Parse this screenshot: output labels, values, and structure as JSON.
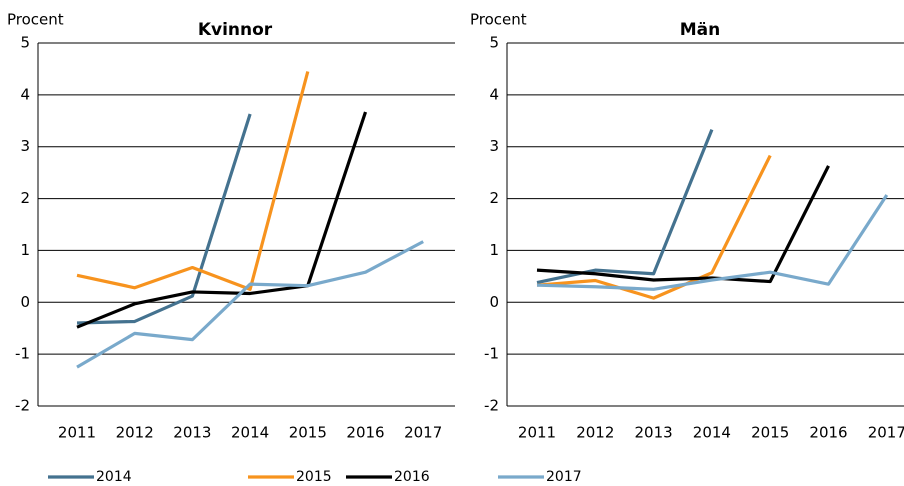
{
  "legend": [
    {
      "name": "2014",
      "color": "#44728f"
    },
    {
      "name": "2015",
      "color": "#f7931e"
    },
    {
      "name": "2016",
      "color": "#000000"
    },
    {
      "name": "2017",
      "color": "#79a9cb"
    }
  ],
  "chart_data": [
    {
      "type": "line",
      "title": "Kvinnor",
      "y_label": "Procent",
      "categories": [
        "2011",
        "2012",
        "2013",
        "2014",
        "2015",
        "2016",
        "2017"
      ],
      "ylim": [
        -2,
        5
      ],
      "yticks": [
        -2,
        -1,
        0,
        1,
        2,
        3,
        4,
        5
      ],
      "grid": true,
      "series": [
        {
          "values": [
            -0.4,
            -0.37,
            0.12,
            3.63,
            null,
            null,
            null
          ]
        },
        {
          "values": [
            0.52,
            0.28,
            0.67,
            0.25,
            4.45,
            null,
            null
          ]
        },
        {
          "values": [
            -0.48,
            -0.03,
            0.2,
            0.17,
            0.32,
            3.67,
            null
          ]
        },
        {
          "values": [
            -1.25,
            -0.6,
            -0.72,
            0.35,
            0.32,
            0.58,
            1.17
          ]
        }
      ]
    },
    {
      "type": "line",
      "title": "Män",
      "y_label": "Procent",
      "categories": [
        "2011",
        "2012",
        "2013",
        "2014",
        "2015",
        "2016",
        "2017"
      ],
      "ylim": [
        -2,
        5
      ],
      "yticks": [
        -2,
        -1,
        0,
        1,
        2,
        3,
        4,
        5
      ],
      "grid": true,
      "series": [
        {
          "values": [
            0.38,
            0.62,
            0.55,
            3.33,
            null,
            null,
            null
          ]
        },
        {
          "values": [
            0.33,
            0.42,
            0.08,
            0.57,
            2.83,
            null,
            null
          ]
        },
        {
          "values": [
            0.62,
            0.55,
            0.43,
            0.47,
            0.4,
            2.63,
            null
          ]
        },
        {
          "values": [
            0.33,
            0.3,
            0.25,
            0.43,
            0.58,
            0.35,
            2.07
          ]
        }
      ]
    }
  ]
}
